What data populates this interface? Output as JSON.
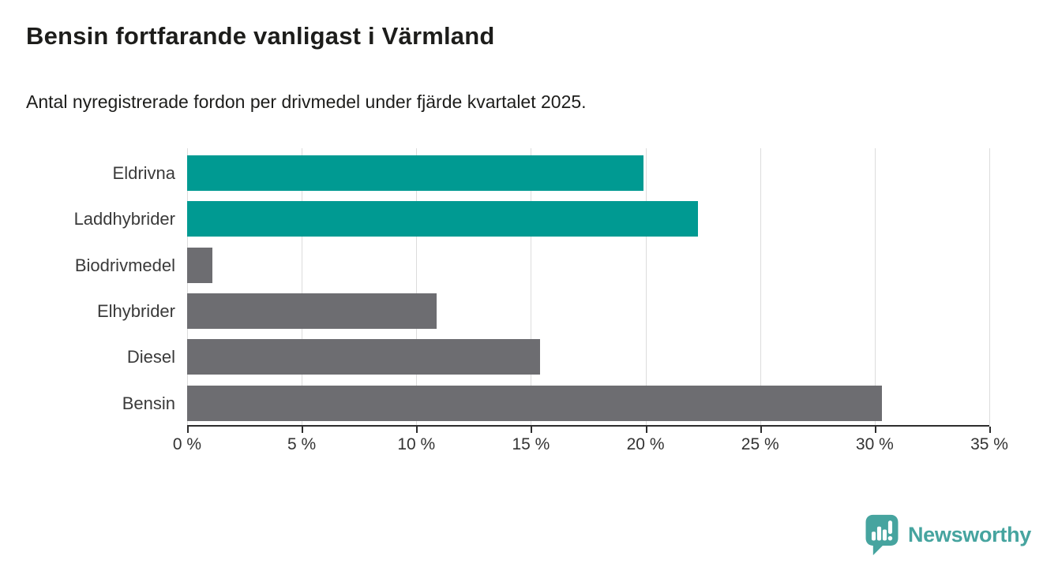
{
  "header": {
    "title": "Bensin fortfarande vanligast i Värmland",
    "subtitle": "Antal nyregistrerade fordon per drivmedel under fjärde kvartalet 2025."
  },
  "chart_data": {
    "type": "bar",
    "orientation": "horizontal",
    "title": "Bensin fortfarande vanligast i Värmland",
    "subtitle": "Antal nyregistrerade fordon per drivmedel under fjärde kvartalet 2025.",
    "categories": [
      "Eldrivna",
      "Laddhybrider",
      "Biodrivmedel",
      "Elhybrider",
      "Diesel",
      "Bensin"
    ],
    "values": [
      19.9,
      22.3,
      1.1,
      10.9,
      15.4,
      30.3
    ],
    "unit": "%",
    "bar_colors": [
      "#009a92",
      "#009a92",
      "#6d6d71",
      "#6d6d71",
      "#6d6d71",
      "#6d6d71"
    ],
    "xlim": [
      0,
      35
    ],
    "x_ticks": [
      0,
      5,
      10,
      15,
      20,
      25,
      30,
      35
    ],
    "x_tick_labels": [
      "0 %",
      "5 %",
      "10 %",
      "15 %",
      "20 %",
      "25 %",
      "30 %",
      "35 %"
    ],
    "grid": "vertical-gridlines",
    "legend": "none"
  },
  "branding": {
    "logo_text": "Newsworthy",
    "logo_icon": "newsworthy-pin-bar-chart-icon",
    "logo_color": "#46a49f"
  },
  "colors": {
    "accent_teal": "#009a92",
    "neutral_gray": "#6d6d71",
    "gridline": "#dcdcdc",
    "axis": "#2d2d2d",
    "text": "#1d1d1b"
  }
}
